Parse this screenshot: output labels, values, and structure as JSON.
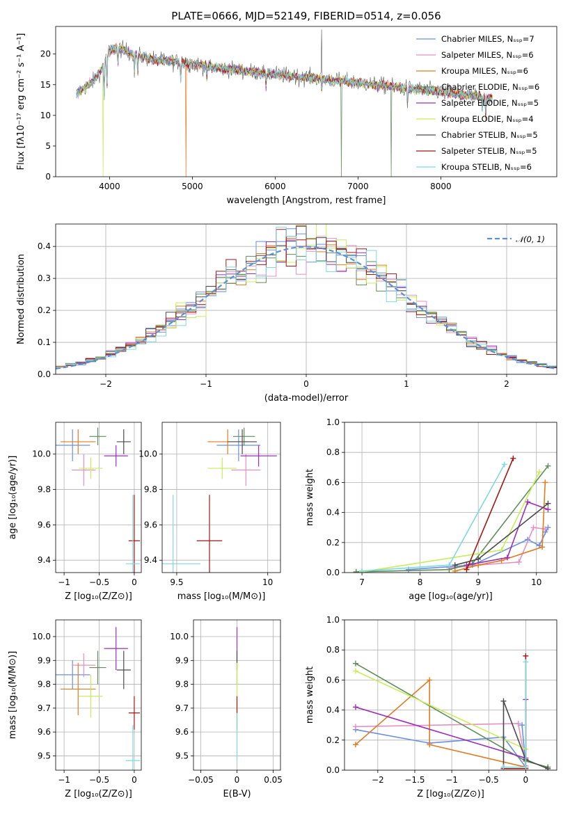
{
  "figure_title": "PLATE=0666, MJD=52149, FIBERID=0514, z=0.056",
  "colors": [
    "#6a8fe0",
    "#e88fc2",
    "#e07b1f",
    "#5f8c5a",
    "#9b2fb8",
    "#c8ec5a",
    "#4a4a4a",
    "#a31515",
    "#7fd8e0"
  ],
  "chart_data": [
    {
      "id": "spectrum",
      "type": "line",
      "xlabel": "wavelength [Angstrom, rest frame]",
      "ylabel": "Flux [fλ10⁻¹⁷ erg cm⁻² s⁻¹ A⁻¹]",
      "xlim": [
        3350,
        9400
      ],
      "ylim": [
        0,
        24.5
      ],
      "xticks": [
        "4000",
        "5000",
        "6000",
        "7000",
        "8000"
      ],
      "yticks": [
        "0",
        "5",
        "10",
        "15",
        "20"
      ],
      "grid": false,
      "legend_position": "top-right",
      "continuum": {
        "x": [
          3600,
          3700,
          3800,
          3900,
          3950,
          4000,
          4100,
          4200,
          4300,
          4400,
          4600,
          4800,
          5000,
          5200,
          5400,
          5600,
          5800,
          6000,
          6200,
          6400,
          6600,
          6800,
          7000,
          7200,
          7400,
          7600,
          7800,
          8000,
          8200,
          8400,
          8600
        ],
        "y": [
          13.5,
          14.5,
          15.5,
          17.5,
          19,
          20.5,
          21,
          20.5,
          20,
          19.5,
          19,
          18.7,
          18.4,
          18,
          17.6,
          17.3,
          17,
          16.7,
          16.4,
          16.2,
          15.9,
          15.6,
          15.3,
          15,
          14.7,
          14.4,
          14.1,
          13.8,
          13.5,
          13.2,
          12.9
        ]
      },
      "series": [
        {
          "name": "Chabrier MILES, Nₛₛₚ=7"
        },
        {
          "name": "Salpeter MILES, Nₛₛₚ=6"
        },
        {
          "name": "Kroupa MILES, Nₛₛₚ=6"
        },
        {
          "name": "Chabrier ELODIE, Nₛₛₚ=6"
        },
        {
          "name": "Salpeter ELODIE, Nₛₛₚ=5"
        },
        {
          "name": "Kroupa ELODIE, Nₛₛₚ=4"
        },
        {
          "name": "Chabrier STELIB, Nₛₛₚ=5"
        },
        {
          "name": "Salpeter STELIB, Nₛₛₚ=5"
        },
        {
          "name": "Kroupa STELIB, Nₛₛₚ=6"
        }
      ]
    },
    {
      "id": "residuals",
      "type": "histogram",
      "xlabel": "(data-model)/error",
      "ylabel": "Normed distribution",
      "xlim": [
        -2.5,
        2.5
      ],
      "ylim": [
        0,
        0.47
      ],
      "xticks": [
        -2,
        -1,
        0,
        1,
        2
      ],
      "yticks": [
        0.0,
        0.1,
        0.2,
        0.3,
        0.4
      ],
      "grid": true,
      "legend_position": "top-right",
      "reference_curve": {
        "name": "𝒩(0, 1)",
        "mean": 0,
        "sigma": 1
      },
      "bin_width": 0.1
    },
    {
      "id": "age_vs_Z",
      "type": "errorbar",
      "xlabel": "Z [log₁₀(Z/Z⊙)]",
      "ylabel": "age  [log₁₀(age/yr)]",
      "xlim": [
        -1.12,
        0.1
      ],
      "ylim": [
        9.33,
        10.18
      ],
      "xticks": [
        -1,
        -0.5,
        0
      ],
      "yticks": [
        9.4,
        9.6,
        9.8,
        10.0
      ],
      "grid": true,
      "points": [
        {
          "x": -0.88,
          "y": 10.05,
          "xerr": 0.25,
          "yerr": 0.09
        },
        {
          "x": -0.72,
          "y": 9.91,
          "xerr": 0.17,
          "yerr": 0.09
        },
        {
          "x": -0.8,
          "y": 10.07,
          "xerr": 0.25,
          "yerr": 0.07
        },
        {
          "x": -0.52,
          "y": 10.1,
          "xerr": 0.12,
          "yerr": 0.05
        },
        {
          "x": -0.26,
          "y": 9.99,
          "xerr": 0.17,
          "yerr": 0.06
        },
        {
          "x": -0.62,
          "y": 9.92,
          "xerr": 0.17,
          "yerr": 0.06
        },
        {
          "x": -0.15,
          "y": 10.07,
          "xerr": 0.1,
          "yerr": 0.07
        },
        {
          "x": 0.0,
          "y": 9.51,
          "xerr": 0.08,
          "yerr": 0.26
        },
        {
          "x": -0.02,
          "y": 9.38,
          "xerr": 0.1,
          "yerr": 0.39
        }
      ]
    },
    {
      "id": "age_vs_mass",
      "type": "errorbar",
      "xlabel": "mass [log₁₀(M/M⊙)]",
      "ylabel": "",
      "xlim": [
        9.42,
        10.07
      ],
      "ylim": [
        9.33,
        10.18
      ],
      "xticks": [
        9.5,
        10.0
      ],
      "yticks": [
        9.4,
        9.6,
        9.8,
        10.0
      ],
      "grid": true,
      "points": [
        {
          "x": 9.84,
          "y": 10.05,
          "xerr": 0.12,
          "yerr": 0.09
        },
        {
          "x": 9.88,
          "y": 9.91,
          "xerr": 0.08,
          "yerr": 0.09
        },
        {
          "x": 9.78,
          "y": 10.07,
          "xerr": 0.11,
          "yerr": 0.07
        },
        {
          "x": 9.87,
          "y": 10.1,
          "xerr": 0.06,
          "yerr": 0.05
        },
        {
          "x": 9.95,
          "y": 9.99,
          "xerr": 0.1,
          "yerr": 0.06
        },
        {
          "x": 9.75,
          "y": 9.92,
          "xerr": 0.08,
          "yerr": 0.06
        },
        {
          "x": 9.86,
          "y": 10.07,
          "xerr": 0.08,
          "yerr": 0.07
        },
        {
          "x": 9.68,
          "y": 9.51,
          "xerr": 0.07,
          "yerr": 0.26
        },
        {
          "x": 9.48,
          "y": 9.38,
          "xerr": 0.15,
          "yerr": 0.39
        }
      ]
    },
    {
      "id": "weight_vs_age",
      "type": "line",
      "xlabel": "age  [log₁₀(age/yr)]",
      "ylabel": "mass weight",
      "xlim": [
        6.7,
        10.35
      ],
      "ylim": [
        0,
        1.0
      ],
      "xticks": [
        7,
        8,
        9,
        10
      ],
      "yticks": [
        0.0,
        0.2,
        0.4,
        0.6,
        0.8,
        1.0
      ],
      "grid": true,
      "series": [
        {
          "x": [
            7.8,
            8.9,
            9.85,
            10.05,
            10.2,
            10.15
          ],
          "y": [
            0.02,
            0.05,
            0.22,
            0.18,
            0.3,
            0.27
          ]
        },
        {
          "x": [
            8.5,
            9.0,
            9.7,
            9.95,
            10.15
          ],
          "y": [
            0.03,
            0.05,
            0.07,
            0.3,
            0.29
          ]
        },
        {
          "x": [
            8.6,
            9.0,
            9.4,
            10.1,
            10.15
          ],
          "y": [
            0.01,
            0.05,
            0.08,
            0.17,
            0.6
          ]
        },
        {
          "x": [
            6.9,
            8.5,
            8.9,
            10.2
          ],
          "y": [
            0.005,
            0.02,
            0.06,
            0.71
          ]
        },
        {
          "x": [
            8.8,
            9.5,
            9.85,
            10.2
          ],
          "y": [
            0.05,
            0.1,
            0.47,
            0.42
          ]
        },
        {
          "x": [
            7.0,
            9.4,
            10.05
          ],
          "y": [
            0.005,
            0.15,
            0.67
          ]
        },
        {
          "x": [
            8.6,
            9.0,
            10.2
          ],
          "y": [
            0.05,
            0.09,
            0.46
          ]
        },
        {
          "x": [
            8.8,
            9.6
          ],
          "y": [
            0.02,
            0.76
          ]
        },
        {
          "x": [
            7.0,
            8.5,
            9.45
          ],
          "y": [
            0.01,
            0.05,
            0.72
          ]
        }
      ]
    },
    {
      "id": "mass_vs_Z",
      "type": "errorbar",
      "xlabel": "Z [log₁₀(Z/Z⊙)]",
      "ylabel": "mass [log₁₀(M/M⊙)]",
      "xlim": [
        -1.12,
        0.1
      ],
      "ylim": [
        9.44,
        10.07
      ],
      "xticks": [
        -1,
        -0.5,
        0
      ],
      "yticks": [
        9.5,
        9.6,
        9.7,
        9.8,
        9.9,
        10.0
      ],
      "grid": true,
      "points": [
        {
          "x": -0.88,
          "y": 9.84,
          "xerr": 0.25,
          "yerr": 0.06
        },
        {
          "x": -0.72,
          "y": 9.88,
          "xerr": 0.17,
          "yerr": 0.05
        },
        {
          "x": -0.8,
          "y": 9.78,
          "xerr": 0.25,
          "yerr": 0.11
        },
        {
          "x": -0.52,
          "y": 9.87,
          "xerr": 0.12,
          "yerr": 0.07
        },
        {
          "x": -0.26,
          "y": 9.95,
          "xerr": 0.17,
          "yerr": 0.09
        },
        {
          "x": -0.62,
          "y": 9.75,
          "xerr": 0.17,
          "yerr": 0.09
        },
        {
          "x": -0.15,
          "y": 9.86,
          "xerr": 0.1,
          "yerr": 0.08
        },
        {
          "x": 0.0,
          "y": 9.68,
          "xerr": 0.08,
          "yerr": 0.07
        },
        {
          "x": -0.02,
          "y": 9.48,
          "xerr": 0.1,
          "yerr": 0.15
        }
      ]
    },
    {
      "id": "mass_vs_ebv",
      "type": "errorbar",
      "xlabel": "E(B-V)",
      "ylabel": "",
      "xlim": [
        -0.06,
        0.06
      ],
      "ylim": [
        9.44,
        10.07
      ],
      "xticks": [
        -0.05,
        0.0,
        0.05
      ],
      "yticks": [
        9.5,
        9.6,
        9.7,
        9.8,
        9.9,
        10.0
      ],
      "grid": true,
      "points": [
        {
          "x": 0.0,
          "y": 9.95,
          "xerr": 0,
          "yerr": 0.09
        },
        {
          "x": 0.0,
          "y": 9.87,
          "xerr": 0,
          "yerr": 0.07
        },
        {
          "x": 0.0,
          "y": 9.78,
          "xerr": 0,
          "yerr": 0.11
        },
        {
          "x": 0.0,
          "y": 9.68,
          "xerr": 0,
          "yerr": 0.07
        },
        {
          "x": 0.0,
          "y": 9.58,
          "xerr": 0,
          "yerr": 0.1
        }
      ]
    },
    {
      "id": "weight_vs_Z",
      "type": "line",
      "xlabel": "Z [log₁₀(Z/Z⊙)]",
      "ylabel": "mass weight",
      "xlim": [
        -2.45,
        0.42
      ],
      "ylim": [
        0,
        1.0
      ],
      "xticks": [
        -2.0,
        -1.5,
        -1.0,
        -0.5,
        0.0
      ],
      "yticks": [
        0.0,
        0.2,
        0.4,
        0.6,
        0.8,
        1.0
      ],
      "grid": true,
      "series": [
        {
          "x": [
            -2.3,
            -1.3,
            -0.3,
            0.0,
            -0.05
          ],
          "y": [
            0.27,
            0.18,
            0.22,
            0.02,
            0.3
          ]
        },
        {
          "x": [
            -2.3,
            -0.1,
            0.0
          ],
          "y": [
            0.29,
            0.31,
            0.03
          ]
        },
        {
          "x": [
            -2.3,
            -1.3,
            -1.3,
            0.0
          ],
          "y": [
            0.17,
            0.6,
            0.17,
            0.02
          ]
        },
        {
          "x": [
            -2.3,
            0.0,
            0.3
          ],
          "y": [
            0.71,
            0.06,
            0.02
          ]
        },
        {
          "x": [
            -2.3,
            0.0,
            0.0
          ],
          "y": [
            0.42,
            0.08,
            0.47
          ]
        },
        {
          "x": [
            -2.3,
            0.0
          ],
          "y": [
            0.66,
            0.14
          ]
        },
        {
          "x": [
            -0.3,
            -0.3,
            0.0,
            0.3
          ],
          "y": [
            0.02,
            0.46,
            0.07,
            0.01
          ]
        },
        {
          "x": [
            -0.3,
            0.0,
            0.0
          ],
          "y": [
            0.01,
            0.01,
            0.76
          ]
        },
        {
          "x": [
            -0.3,
            0.0,
            0.0
          ],
          "y": [
            0.02,
            0.02,
            0.72
          ]
        }
      ]
    }
  ]
}
